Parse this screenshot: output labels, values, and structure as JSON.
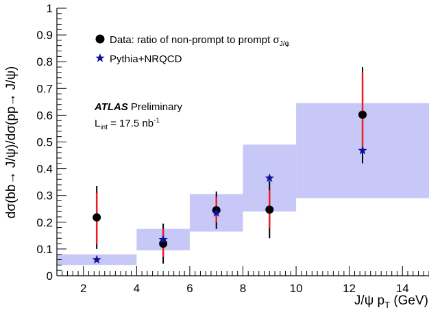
{
  "chart_data": {
    "type": "scatter",
    "xlabel_main": "J/ψ p",
    "xlabel_sub": "T",
    "xlabel_unit": " (GeV)",
    "ylabel": "dσ(bb→ J/ψ)/dσ(pp→ J/ψ)",
    "xlim": [
      1,
      15
    ],
    "ylim": [
      0,
      1
    ],
    "xticks": [
      2,
      4,
      6,
      8,
      10,
      12,
      14
    ],
    "yticks": [
      0,
      0.1,
      0.2,
      0.3,
      0.4,
      0.5,
      0.6,
      0.7,
      0.8,
      0.9,
      1
    ],
    "ytick_labels": [
      "0",
      "0.1",
      "0.2",
      "0.3",
      "0.4",
      "0.5",
      "0.6",
      "0.7",
      "0.8",
      "0.9",
      "1"
    ],
    "legend_position": "top-left",
    "legend": {
      "data_label": "Data: ratio of non-prompt to prompt σ",
      "data_sub": "J/ψ",
      "mc_label": "Pythia+NRQCD"
    },
    "annotation": {
      "experiment": "ATLAS",
      "status": "Preliminary",
      "lumi_prefix": "L",
      "lumi_sub": "int",
      "lumi_text": " = 17.5 nb",
      "lumi_sup": "-1"
    },
    "colors": {
      "band": "#c8c8f8",
      "data_marker": "#000000",
      "stat_error": "#ee1c25",
      "total_error": "#000000",
      "mc_marker": "#1010a0"
    },
    "bins": [
      {
        "xlo": 1,
        "xhi": 4,
        "mc_lo": 0.04,
        "mc_hi": 0.08
      },
      {
        "xlo": 4,
        "xhi": 6,
        "mc_lo": 0.095,
        "mc_hi": 0.175
      },
      {
        "xlo": 6,
        "xhi": 8,
        "mc_lo": 0.165,
        "mc_hi": 0.305
      },
      {
        "xlo": 8,
        "xhi": 10,
        "mc_lo": 0.24,
        "mc_hi": 0.49
      },
      {
        "xlo": 10,
        "xhi": 15,
        "mc_lo": 0.29,
        "mc_hi": 0.645
      }
    ],
    "series": [
      {
        "name": "Data: ratio of non-prompt to prompt σJ/ψ",
        "points": [
          {
            "x": 2.5,
            "y": 0.218,
            "stat_lo": 0.12,
            "stat_hi": 0.31,
            "tot_lo": 0.1,
            "tot_hi": 0.335
          },
          {
            "x": 5.0,
            "y": 0.12,
            "stat_lo": 0.07,
            "stat_hi": 0.175,
            "tot_lo": 0.045,
            "tot_hi": 0.195
          },
          {
            "x": 7.0,
            "y": 0.245,
            "stat_lo": 0.2,
            "stat_hi": 0.295,
            "tot_lo": 0.175,
            "tot_hi": 0.315
          },
          {
            "x": 9.0,
            "y": 0.247,
            "stat_lo": 0.18,
            "stat_hi": 0.32,
            "tot_lo": 0.14,
            "tot_hi": 0.355
          },
          {
            "x": 12.5,
            "y": 0.602,
            "stat_lo": 0.465,
            "stat_hi": 0.76,
            "tot_lo": 0.42,
            "tot_hi": 0.78
          }
        ]
      },
      {
        "name": "Pythia+NRQCD",
        "points": [
          {
            "x": 2.5,
            "y": 0.06
          },
          {
            "x": 5.0,
            "y": 0.135
          },
          {
            "x": 7.0,
            "y": 0.235
          },
          {
            "x": 9.0,
            "y": 0.365
          },
          {
            "x": 12.5,
            "y": 0.468
          }
        ]
      }
    ]
  }
}
